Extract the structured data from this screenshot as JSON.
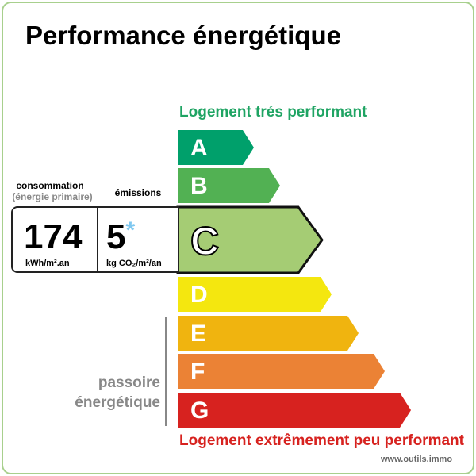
{
  "title": "Performance énergétique",
  "top_label": "Logement trés performant",
  "bottom_label": "Logement extrêmement peu performant",
  "website": "www.outils.immo",
  "consumption": {
    "label": "consommation",
    "sublabel": "(énergie primaire)",
    "value": "174",
    "unit": "kWh/m².an"
  },
  "emissions": {
    "label": "émissions",
    "value": "5",
    "mark": "*",
    "unit": "kg CO₂/m²/an"
  },
  "passoire": {
    "line1": "passoire",
    "line2": "énergétique"
  },
  "current_class": "C",
  "classes": [
    {
      "letter": "A",
      "color": "#00a06b"
    },
    {
      "letter": "B",
      "color": "#52b153"
    },
    {
      "letter": "C",
      "color": "#a5cc74"
    },
    {
      "letter": "D",
      "color": "#f4e70f"
    },
    {
      "letter": "E",
      "color": "#f0b40f"
    },
    {
      "letter": "F",
      "color": "#eb8235"
    },
    {
      "letter": "G",
      "color": "#d7221f"
    }
  ]
}
